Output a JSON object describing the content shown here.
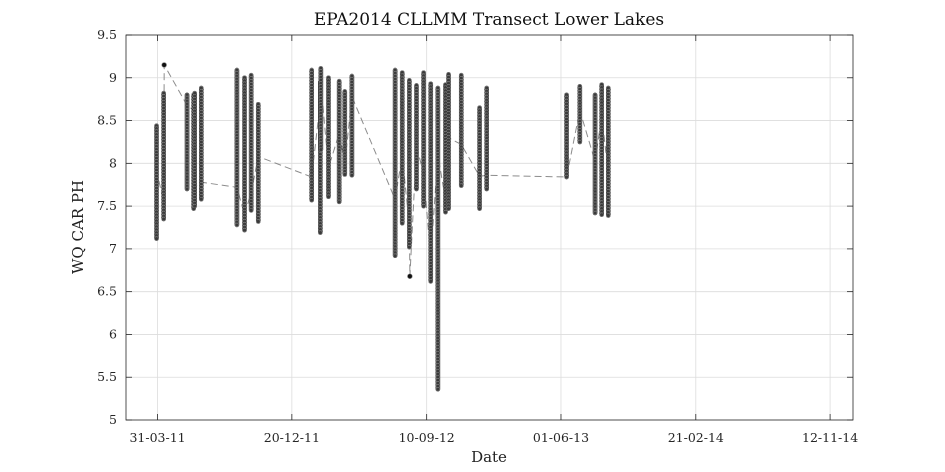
{
  "chart_data": {
    "type": "scatter",
    "title": "EPA2014 CLLMM Transect Lower Lakes",
    "xlabel": "Date",
    "ylabel": "WQ CAR PH",
    "x_tick_labels": [
      "31-03-11",
      "20-12-11",
      "10-09-12",
      "01-06-13",
      "21-02-14",
      "12-11-14"
    ],
    "x_ticks": [
      "2011-03-31",
      "2011-12-20",
      "2012-09-10",
      "2013-06-01",
      "2014-02-21",
      "2014-11-12"
    ],
    "xlim": [
      "2011-01-28",
      "2014-12-27"
    ],
    "ylim": [
      5,
      9.5
    ],
    "y_ticks": [
      5,
      5.5,
      6,
      6.5,
      7,
      7.5,
      8,
      8.5,
      9,
      9.5
    ],
    "y_tick_labels": [
      "5",
      "5.5",
      "6",
      "6.5",
      "7",
      "7.5",
      "8",
      "8.5",
      "9",
      "9.5"
    ],
    "grid": true,
    "marker_color": "#111111",
    "line_color": "#8c8c8c",
    "line_style": "dashed",
    "series": [
      {
        "profiles": [
          {
            "date": "2011-03-29",
            "min": 7.12,
            "max": 8.44,
            "mean": 7.92
          },
          {
            "date": "2011-04-12",
            "min": 7.35,
            "max": 8.82,
            "mean": 7.55
          },
          {
            "date": "2011-04-13",
            "min": 9.15,
            "max": 9.15,
            "mean": 9.15
          },
          {
            "date": "2011-05-28",
            "min": 7.7,
            "max": 8.8,
            "mean": 8.68
          },
          {
            "date": "2011-06-10",
            "min": 7.47,
            "max": 8.8,
            "mean": 8.62
          },
          {
            "date": "2011-06-12",
            "min": 7.5,
            "max": 8.82,
            "mean": 7.72
          },
          {
            "date": "2011-06-25",
            "min": 7.58,
            "max": 8.88,
            "mean": 7.78
          },
          {
            "date": "2011-09-03",
            "min": 7.28,
            "max": 9.09,
            "mean": 7.72
          },
          {
            "date": "2011-09-18",
            "min": 7.22,
            "max": 9.0,
            "mean": 7.4
          },
          {
            "date": "2011-10-01",
            "min": 7.45,
            "max": 9.03,
            "mean": 7.66
          },
          {
            "date": "2011-10-15",
            "min": 7.32,
            "max": 8.69,
            "mean": 8.08
          },
          {
            "date": "2012-01-28",
            "min": 7.57,
            "max": 9.09,
            "mean": 7.84
          },
          {
            "date": "2012-02-14",
            "min": 7.19,
            "max": 8.95,
            "mean": 8.72
          },
          {
            "date": "2012-02-15",
            "min": 8.16,
            "max": 9.11,
            "mean": 8.92
          },
          {
            "date": "2012-03-01",
            "min": 7.61,
            "max": 9.0,
            "mean": 7.95
          },
          {
            "date": "2012-03-22",
            "min": 7.55,
            "max": 8.96,
            "mean": 8.35
          },
          {
            "date": "2012-04-02",
            "min": 7.87,
            "max": 8.84,
            "mean": 7.99
          },
          {
            "date": "2012-04-16",
            "min": 7.86,
            "max": 9.02,
            "mean": 8.78
          },
          {
            "date": "2012-07-10",
            "min": 6.92,
            "max": 9.09,
            "mean": 7.58
          },
          {
            "date": "2012-07-24",
            "min": 7.3,
            "max": 9.06,
            "mean": 8.09
          },
          {
            "date": "2012-08-07",
            "min": 7.02,
            "max": 8.97,
            "mean": 7.27
          },
          {
            "date": "2012-08-08",
            "min": 6.68,
            "max": 6.68,
            "mean": 6.68
          },
          {
            "date": "2012-08-21",
            "min": 7.7,
            "max": 8.91,
            "mean": 8.2
          },
          {
            "date": "2012-09-04",
            "min": 7.5,
            "max": 9.06,
            "mean": 7.88
          },
          {
            "date": "2012-09-18",
            "min": 6.62,
            "max": 8.93,
            "mean": 6.9
          },
          {
            "date": "2012-10-02",
            "min": 5.36,
            "max": 8.88,
            "mean": 8.1
          },
          {
            "date": "2012-10-17",
            "min": 7.43,
            "max": 8.92,
            "mean": 7.57
          },
          {
            "date": "2012-10-23",
            "min": 7.47,
            "max": 9.04,
            "mean": 8.3
          },
          {
            "date": "2012-11-17",
            "min": 7.74,
            "max": 9.03,
            "mean": 8.22
          },
          {
            "date": "2012-12-23",
            "min": 7.47,
            "max": 8.65,
            "mean": 7.85
          },
          {
            "date": "2013-01-06",
            "min": 7.7,
            "max": 8.88,
            "mean": 7.86
          },
          {
            "date": "2013-06-12",
            "min": 7.84,
            "max": 8.8,
            "mean": 7.84
          },
          {
            "date": "2013-07-08",
            "min": 8.25,
            "max": 8.9,
            "mean": 8.62
          },
          {
            "date": "2013-08-07",
            "min": 7.42,
            "max": 8.8,
            "mean": 8.02
          },
          {
            "date": "2013-08-20",
            "min": 7.4,
            "max": 8.92,
            "mean": 8.56
          },
          {
            "date": "2013-09-02",
            "min": 7.39,
            "max": 8.88,
            "mean": 7.88
          }
        ]
      }
    ]
  }
}
